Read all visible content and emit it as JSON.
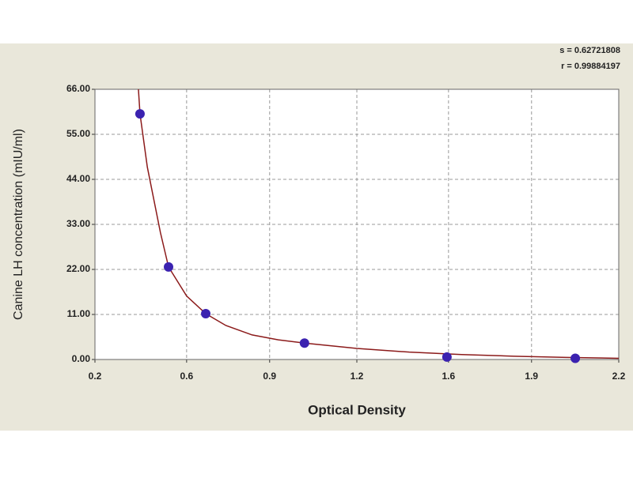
{
  "chart_data": {
    "type": "scatter",
    "annotations": [
      "s = 0.62721808",
      "r = 0.99884197"
    ],
    "x_label": "Optical Density",
    "y_label": "Canine LH concentration (mIU/ml)",
    "xlim": [
      0.2,
      2.2
    ],
    "xticks": [
      0.2,
      {
        "value": 0.55,
        "label": "0.6"
      },
      {
        "value": 0.867,
        "label": "0.9"
      },
      1.2,
      {
        "value": 1.55,
        "label": "1.6"
      },
      {
        "value": 1.867,
        "label": "1.9"
      },
      2.2
    ],
    "ylim": [
      0,
      66
    ],
    "yticks": [
      {
        "value": 0,
        "label": "0.00"
      },
      {
        "value": 11,
        "label": "11.00"
      },
      {
        "value": 22,
        "label": "22.00"
      },
      {
        "value": 33,
        "label": "33.00"
      },
      {
        "value": 44,
        "label": "44.00"
      },
      {
        "value": 55,
        "label": "55.00"
      },
      {
        "value": 66,
        "label": "66.00"
      }
    ],
    "grid": true,
    "series": [
      {
        "type": "line",
        "color": "#8b1a1a",
        "x": [
          0.366,
          0.372,
          0.4,
          0.45,
          0.481,
          0.55,
          0.623,
          0.7,
          0.8,
          0.9,
          1.0,
          1.2,
          1.4,
          1.6,
          1.8,
          2.0,
          2.2
        ],
        "values": [
          66,
          60,
          47,
          31,
          22.6,
          15.5,
          11.2,
          8.3,
          6.0,
          4.8,
          4.0,
          2.7,
          1.8,
          1.2,
          0.8,
          0.5,
          0.3
        ]
      },
      {
        "type": "scatter",
        "color": "#3b22b0",
        "x": [
          0.372,
          0.481,
          0.623,
          1.0,
          1.544,
          2.034
        ],
        "values": [
          60,
          22.6,
          11.2,
          4.0,
          0.6,
          0.3
        ]
      }
    ]
  }
}
